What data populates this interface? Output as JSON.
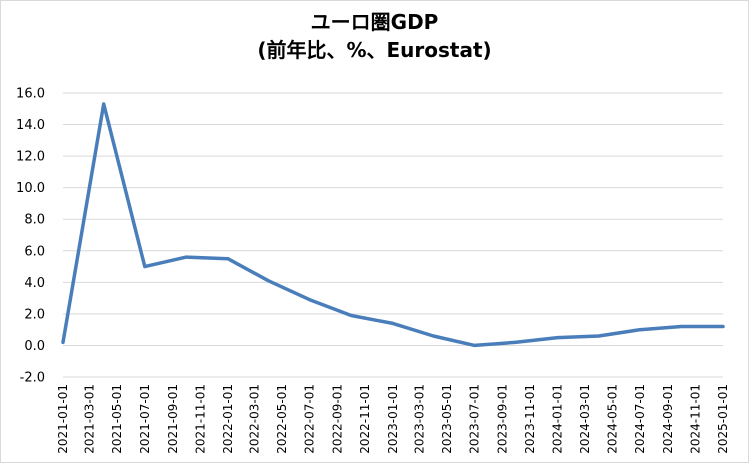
{
  "chart_data": {
    "type": "line",
    "title": "ユーロ圏GDP",
    "subtitle": "(前年比、%、Eurostat)",
    "xlabel": "",
    "ylabel": "",
    "ylim": [
      -2.0,
      16.0
    ],
    "y_ticks": [
      "16.0",
      "14.0",
      "12.0",
      "10.0",
      "8.0",
      "6.0",
      "4.0",
      "2.0",
      "0.0",
      "-2.0"
    ],
    "x_ticks": [
      "2021-01-01",
      "2021-03-01",
      "2021-05-01",
      "2021-07-01",
      "2021-09-01",
      "2021-11-01",
      "2022-01-01",
      "2022-03-01",
      "2022-05-01",
      "2022-07-01",
      "2022-09-01",
      "2022-11-01",
      "2023-01-01",
      "2023-03-01",
      "2023-05-01",
      "2023-07-01",
      "2023-09-01",
      "2023-11-01",
      "2024-01-01",
      "2024-03-01",
      "2024-05-01",
      "2024-07-01",
      "2024-09-01",
      "2024-11-01",
      "2025-01-01"
    ],
    "grid": true,
    "legend": "none",
    "series": [
      {
        "color": "#4a7ebb",
        "x": [
          "2021-01-01",
          "2021-04-01",
          "2021-07-01",
          "2021-10-01",
          "2022-01-01",
          "2022-04-01",
          "2022-07-01",
          "2022-10-01",
          "2023-01-01",
          "2023-04-01",
          "2023-07-01",
          "2023-10-01",
          "2024-01-01",
          "2024-04-01",
          "2024-07-01",
          "2024-10-01",
          "2025-01-01"
        ],
        "values": [
          0.2,
          15.3,
          5.0,
          5.6,
          5.5,
          4.1,
          2.9,
          1.9,
          1.4,
          0.6,
          0.0,
          0.2,
          0.5,
          0.6,
          1.0,
          1.2,
          1.2
        ]
      }
    ]
  }
}
